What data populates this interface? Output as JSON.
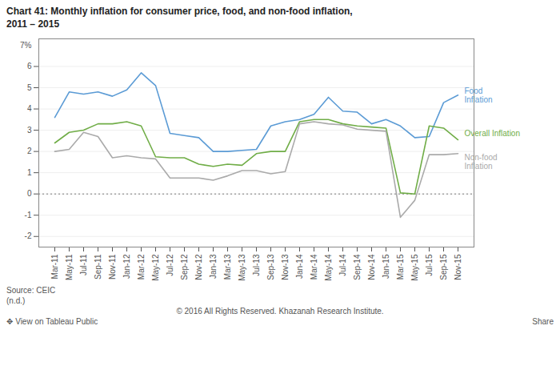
{
  "chart_data": {
    "type": "line",
    "title": "Chart 41: Monthly inflation for consumer price, food, and non-food inflation,",
    "subtitle": "2011 – 2015",
    "categories": [
      "Mar-11",
      "May-11",
      "Jul-11",
      "Sep-11",
      "Nov-11",
      "Jan-12",
      "Mar-12",
      "May-12",
      "Jul-12",
      "Sep-12",
      "Nov-12",
      "Jan-13",
      "Mar-13",
      "May-13",
      "Jul-13",
      "Sep-13",
      "Nov-13",
      "Jan-14",
      "Mar-14",
      "May-14",
      "Jul-14",
      "Sep-14",
      "Nov-14",
      "Jan-15",
      "Mar-15",
      "May-15",
      "Jul-15",
      "Sep-15",
      "Nov-15"
    ],
    "series": [
      {
        "name": "Food\nInflation",
        "color": "#5B9BD5",
        "values": [
          3.6,
          4.8,
          4.7,
          4.8,
          4.6,
          4.9,
          5.7,
          5.1,
          2.85,
          2.75,
          2.65,
          2.0,
          2.0,
          2.05,
          2.1,
          3.2,
          3.4,
          3.5,
          3.75,
          4.55,
          3.9,
          3.85,
          3.3,
          3.5,
          3.2,
          2.65,
          2.7,
          4.3,
          4.65
        ]
      },
      {
        "name": "Overall Inflation",
        "color": "#70AD47",
        "values": [
          2.4,
          2.9,
          3.0,
          3.3,
          3.3,
          3.4,
          3.2,
          1.75,
          1.7,
          1.7,
          1.4,
          1.3,
          1.4,
          1.35,
          1.9,
          2.0,
          2.0,
          3.4,
          3.5,
          3.5,
          3.3,
          3.2,
          3.15,
          3.1,
          0.05,
          0.0,
          3.2,
          3.1,
          2.55
        ]
      },
      {
        "name": "Non-food\nInflation",
        "color": "#AAAAAA",
        "values": [
          2.0,
          2.1,
          2.9,
          2.7,
          1.7,
          1.8,
          1.7,
          1.65,
          0.75,
          0.75,
          0.75,
          0.65,
          0.85,
          1.1,
          1.1,
          0.95,
          1.05,
          3.3,
          3.4,
          3.3,
          3.25,
          3.05,
          3.0,
          2.95,
          -1.1,
          -0.3,
          1.85,
          1.85,
          1.9
        ]
      }
    ],
    "ylim": [
      -2.5,
      7.3
    ],
    "yticks": [
      -2,
      -1,
      0,
      1,
      2,
      3,
      4,
      5,
      6
    ],
    "reference_lines": [
      0
    ],
    "grid": true,
    "annotations": [
      {
        "text": "7%",
        "y": 7
      },
      {
        "text": "Source: CEIC\n(n.d.)"
      },
      {
        "text": "© 2016 All Rights Reserved. Khazanah Research Institute."
      },
      {
        "text": "✥ View on Tableau Public"
      },
      {
        "text": "Share"
      }
    ]
  }
}
